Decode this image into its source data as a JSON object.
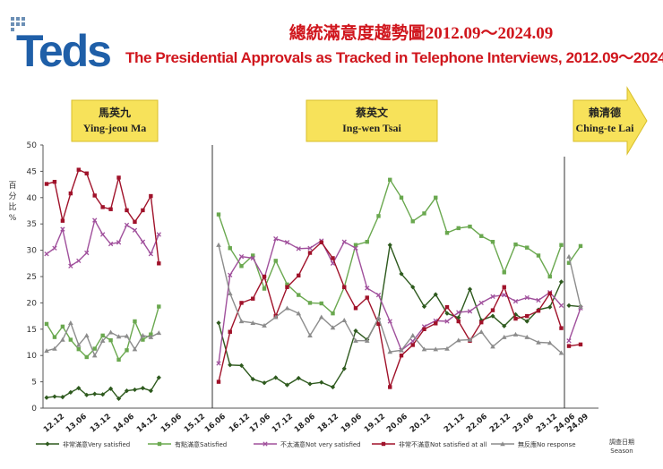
{
  "header": {
    "logo_text": "Teds",
    "title_zh": "總統滿意度趨勢圖2012.09～2024.09",
    "title_en": "The Presidential Approvals as Tracked in Telephone Interviews, 2012.09～2024.09"
  },
  "colors": {
    "very_satisfied": "#2e5a1e",
    "satisfied": "#6aa84f",
    "not_very_satisfied": "#a0509c",
    "not_satisfied_at_all": "#a0122a",
    "no_response": "#8c8c8c",
    "banner_fill": "#f7e25a",
    "title": "#d0161d",
    "logo": "#1f5fa8"
  },
  "chart_data": {
    "type": "line",
    "ylabel": "百分比%",
    "xlabel": "調查日期 Season",
    "ylim": [
      0,
      50
    ],
    "yticks": [
      0,
      5,
      10,
      15,
      20,
      25,
      30,
      35,
      40,
      45,
      50
    ],
    "xtick_labels": [
      "12.12",
      "13.06",
      "13.12",
      "14.06",
      "14.12",
      "15.06",
      "15.12",
      "16.06",
      "16.12",
      "17.06",
      "17.12",
      "18.06",
      "18.12",
      "19.06",
      "19.12",
      "20.06",
      "20.12",
      "21.12",
      "22.06",
      "22.12",
      "23.06",
      "23.12",
      "24.06",
      "24.09"
    ],
    "presidents": [
      {
        "name_zh": "馬英九",
        "name_en": "Ying-jeou Ma"
      },
      {
        "name_zh": "蔡英文",
        "name_en": "Ing-wen Tsai"
      },
      {
        "name_zh": "賴清德",
        "name_en": "Ching-te Lai"
      }
    ],
    "series": [
      {
        "name": "非常滿意Very satisfied",
        "segments": [
          [
            2,
            2.2,
            2.1,
            3,
            3.8,
            2.5,
            2.7,
            2.6,
            3.7,
            1.8,
            3.3,
            3.5,
            3.8,
            3.3,
            5.8
          ],
          [
            16.2,
            8.2,
            8.1,
            5.5,
            4.8,
            5.8,
            4.4,
            5.7,
            4.6,
            4.9,
            4,
            7.5,
            14.7,
            13,
            17,
            31,
            25.5,
            23,
            19.3,
            21.6,
            18,
            17.2,
            22.6,
            16.7,
            17.5,
            15.6,
            17.8,
            16.5,
            18.7,
            19.2,
            24
          ],
          [
            19.5,
            19.3
          ]
        ]
      },
      {
        "name": "有點滿意Satisfied",
        "segments": [
          [
            16,
            13.5,
            15.5,
            13,
            11.2,
            9.7,
            11.3,
            13.8,
            12.9,
            9.2,
            11,
            16.5,
            13,
            14,
            19.3
          ],
          [
            36.8,
            30.4,
            27,
            29,
            22.7,
            28,
            23.5,
            21.5,
            20,
            19.9,
            18,
            23,
            31,
            31.6,
            36.5,
            43.4,
            40,
            35.5,
            37,
            40,
            33.3,
            34.2,
            34.5,
            32.7,
            31.6,
            25.8,
            31.1,
            30.5,
            29,
            25,
            31
          ],
          [
            27.6,
            30.8
          ]
        ]
      },
      {
        "name": "不太滿意Not very satisfied",
        "segments": [
          [
            29.3,
            30.4,
            34,
            27,
            28,
            29.5,
            35.7,
            33,
            31.2,
            31.5,
            34.8,
            33.8,
            31.6,
            29.3,
            33
          ],
          [
            8.5,
            25.3,
            28.8,
            28.5,
            24.7,
            32.2,
            31.5,
            30.3,
            30.4,
            31.8,
            27.5,
            31.6,
            30.4,
            22.8,
            21.5,
            16.5,
            11,
            12.7,
            15.5,
            16.6,
            16.5,
            18.2,
            18.4,
            20,
            21.2,
            21.5,
            20.3,
            21,
            20.5,
            22,
            19.5
          ],
          [
            12.8,
            19
          ]
        ]
      },
      {
        "name": "非常不滿意Not satisfied at all",
        "segments": [
          [
            42.6,
            43,
            35.6,
            40.8,
            45.3,
            44.6,
            40.4,
            38.2,
            37.8,
            43.8,
            37.6,
            35.4,
            37.6,
            40.3,
            27.5
          ],
          [
            5,
            14.5,
            20,
            20.8,
            25,
            17.5,
            23,
            25.2,
            29.5,
            31.5,
            28.5,
            23,
            19,
            21,
            16,
            4,
            10,
            12,
            15,
            16.1,
            19.2,
            16.5,
            12.8,
            16.3,
            18.6,
            23,
            17,
            17.5,
            18.5,
            21.8,
            15.2
          ],
          [
            11.8,
            12.1
          ]
        ]
      },
      {
        "name": "無反應No response",
        "segments": [
          [
            10.9,
            11.3,
            13,
            16.2,
            12,
            13.8,
            10,
            12.8,
            14.4,
            13.6,
            13.7,
            11.2,
            13.8,
            13.5,
            14.3
          ],
          [
            31,
            21.8,
            16.5,
            16.2,
            15.7,
            17.3,
            19,
            18,
            13.8,
            17.3,
            15.3,
            16.7,
            12.8,
            12.8,
            17.2,
            10.7,
            11,
            13.8,
            11.2,
            11.2,
            11.3,
            12.9,
            13,
            14.5,
            11.7,
            13.5,
            14,
            13.5,
            12.5,
            12.4,
            10.5
          ],
          [
            28.8,
            19.3
          ]
        ]
      }
    ],
    "legend_position": "bottom",
    "grid": false
  }
}
